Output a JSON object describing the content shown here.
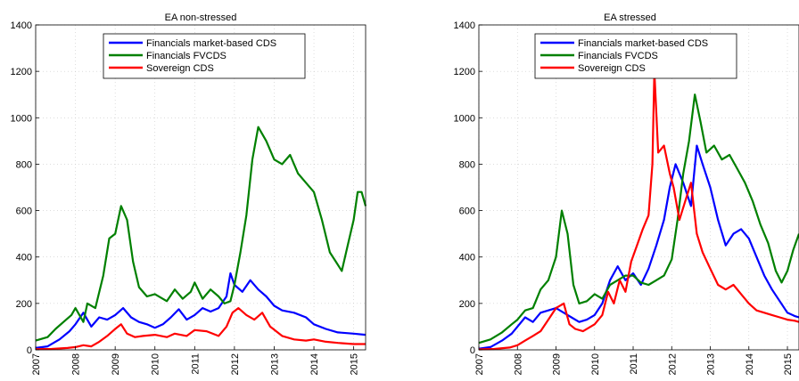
{
  "chart_data": [
    {
      "type": "line",
      "title": "EA non-stressed",
      "xlabel": "",
      "ylabel": "",
      "xlim": [
        2007,
        2015.3
      ],
      "ylim": [
        0,
        1400
      ],
      "x_ticks": [
        "2007",
        "2008",
        "2009",
        "2010",
        "2011",
        "2012",
        "2013",
        "2014",
        "2015"
      ],
      "y_ticks": [
        "0",
        "200",
        "400",
        "600",
        "800",
        "1000",
        "1200",
        "1400"
      ],
      "grid": true,
      "legend_position": "top-center",
      "series": [
        {
          "name": "Financials market-based CDS",
          "color": "#0000ff",
          "x": [
            2007.0,
            2007.3,
            2007.6,
            2007.85,
            2008.0,
            2008.2,
            2008.4,
            2008.6,
            2008.8,
            2009.0,
            2009.2,
            2009.4,
            2009.6,
            2009.8,
            2010.0,
            2010.2,
            2010.4,
            2010.6,
            2010.8,
            2011.0,
            2011.2,
            2011.4,
            2011.6,
            2011.8,
            2011.9,
            2012.0,
            2012.2,
            2012.4,
            2012.6,
            2012.8,
            2013.0,
            2013.2,
            2013.5,
            2013.8,
            2014.0,
            2014.3,
            2014.6,
            2015.0,
            2015.3
          ],
          "y": [
            8,
            15,
            45,
            80,
            110,
            160,
            100,
            140,
            130,
            150,
            180,
            140,
            120,
            110,
            95,
            110,
            140,
            175,
            130,
            150,
            180,
            165,
            180,
            230,
            330,
            280,
            250,
            300,
            260,
            230,
            190,
            170,
            160,
            140,
            110,
            90,
            75,
            70,
            65
          ]
        },
        {
          "name": "Financials FVCDS",
          "color": "#008000",
          "x": [
            2007.0,
            2007.3,
            2007.5,
            2007.7,
            2007.9,
            2008.0,
            2008.2,
            2008.3,
            2008.5,
            2008.7,
            2008.85,
            2009.0,
            2009.15,
            2009.3,
            2009.45,
            2009.6,
            2009.8,
            2010.0,
            2010.3,
            2010.5,
            2010.7,
            2010.9,
            2011.0,
            2011.2,
            2011.4,
            2011.6,
            2011.75,
            2011.9,
            2012.0,
            2012.15,
            2012.3,
            2012.45,
            2012.6,
            2012.8,
            2013.0,
            2013.2,
            2013.4,
            2013.6,
            2013.8,
            2014.0,
            2014.2,
            2014.4,
            2014.55,
            2014.7,
            2014.85,
            2015.0,
            2015.1,
            2015.2,
            2015.3
          ],
          "y": [
            40,
            55,
            90,
            120,
            150,
            180,
            120,
            200,
            180,
            320,
            480,
            500,
            620,
            560,
            380,
            270,
            230,
            240,
            210,
            260,
            220,
            250,
            290,
            220,
            260,
            230,
            200,
            210,
            280,
            420,
            580,
            820,
            960,
            900,
            820,
            800,
            840,
            760,
            720,
            680,
            560,
            420,
            380,
            340,
            450,
            560,
            680,
            680,
            620
          ]
        },
        {
          "name": "Sovereign CDS",
          "color": "#ff0000",
          "x": [
            2007.0,
            2007.4,
            2007.8,
            2008.0,
            2008.2,
            2008.4,
            2008.6,
            2008.8,
            2009.0,
            2009.15,
            2009.3,
            2009.5,
            2009.7,
            2010.0,
            2010.3,
            2010.5,
            2010.8,
            2011.0,
            2011.3,
            2011.6,
            2011.8,
            2011.95,
            2012.1,
            2012.3,
            2012.5,
            2012.7,
            2012.9,
            2013.2,
            2013.5,
            2013.8,
            2014.0,
            2014.3,
            2014.6,
            2015.0,
            2015.3
          ],
          "y": [
            3,
            4,
            8,
            12,
            20,
            15,
            35,
            60,
            90,
            110,
            70,
            55,
            60,
            65,
            55,
            70,
            60,
            85,
            80,
            60,
            100,
            160,
            180,
            150,
            130,
            160,
            100,
            60,
            45,
            40,
            45,
            35,
            30,
            25,
            25
          ]
        }
      ]
    },
    {
      "type": "line",
      "title": "EA stressed",
      "xlabel": "",
      "ylabel": "",
      "xlim": [
        2007,
        2015.3
      ],
      "ylim": [
        0,
        1400
      ],
      "x_ticks": [
        "2007",
        "2008",
        "2009",
        "2010",
        "2011",
        "2012",
        "2013",
        "2014",
        "2015"
      ],
      "y_ticks": [
        "0",
        "200",
        "400",
        "600",
        "800",
        "1000",
        "1200",
        "1400"
      ],
      "grid": true,
      "legend_position": "top-center",
      "series": [
        {
          "name": "Financials market-based CDS",
          "color": "#0000ff",
          "x": [
            2007.0,
            2007.3,
            2007.6,
            2007.85,
            2008.0,
            2008.2,
            2008.4,
            2008.6,
            2008.8,
            2009.0,
            2009.2,
            2009.4,
            2009.6,
            2009.8,
            2010.0,
            2010.2,
            2010.4,
            2010.6,
            2010.8,
            2011.0,
            2011.2,
            2011.4,
            2011.6,
            2011.8,
            2011.95,
            2012.1,
            2012.3,
            2012.5,
            2012.65,
            2012.8,
            2013.0,
            2013.2,
            2013.4,
            2013.6,
            2013.8,
            2014.0,
            2014.2,
            2014.4,
            2014.6,
            2014.8,
            2015.0,
            2015.2,
            2015.3
          ],
          "y": [
            5,
            12,
            40,
            70,
            100,
            140,
            120,
            160,
            170,
            180,
            160,
            140,
            120,
            130,
            150,
            200,
            300,
            360,
            300,
            330,
            280,
            350,
            450,
            560,
            700,
            800,
            720,
            620,
            880,
            800,
            700,
            560,
            450,
            500,
            520,
            480,
            400,
            320,
            260,
            210,
            160,
            145,
            140
          ]
        },
        {
          "name": "Financials FVCDS",
          "color": "#008000",
          "x": [
            2007.0,
            2007.3,
            2007.6,
            2007.85,
            2008.0,
            2008.2,
            2008.4,
            2008.6,
            2008.8,
            2009.0,
            2009.15,
            2009.3,
            2009.45,
            2009.6,
            2009.8,
            2010.0,
            2010.2,
            2010.4,
            2010.6,
            2010.8,
            2011.0,
            2011.2,
            2011.4,
            2011.6,
            2011.8,
            2012.0,
            2012.15,
            2012.3,
            2012.45,
            2012.6,
            2012.75,
            2012.9,
            2013.1,
            2013.3,
            2013.5,
            2013.7,
            2013.9,
            2014.1,
            2014.3,
            2014.5,
            2014.7,
            2014.85,
            2015.0,
            2015.15,
            2015.3
          ],
          "y": [
            30,
            45,
            75,
            110,
            130,
            170,
            180,
            260,
            300,
            400,
            600,
            500,
            280,
            200,
            210,
            240,
            220,
            280,
            300,
            320,
            320,
            290,
            280,
            300,
            320,
            390,
            560,
            760,
            900,
            1100,
            980,
            850,
            880,
            820,
            840,
            780,
            720,
            640,
            540,
            460,
            340,
            290,
            340,
            430,
            500
          ]
        },
        {
          "name": "Sovereign CDS",
          "color": "#ff0000",
          "x": [
            2007.0,
            2007.4,
            2007.8,
            2008.0,
            2008.2,
            2008.4,
            2008.6,
            2008.8,
            2009.0,
            2009.2,
            2009.35,
            2009.5,
            2009.7,
            2010.0,
            2010.2,
            2010.35,
            2010.5,
            2010.65,
            2010.8,
            2010.95,
            2011.1,
            2011.25,
            2011.4,
            2011.5,
            2011.55,
            2011.65,
            2011.8,
            2011.95,
            2012.05,
            2012.2,
            2012.35,
            2012.5,
            2012.65,
            2012.8,
            2013.0,
            2013.2,
            2013.4,
            2013.6,
            2013.8,
            2014.0,
            2014.2,
            2014.4,
            2014.6,
            2014.8,
            2015.0,
            2015.2,
            2015.3
          ],
          "y": [
            2,
            4,
            10,
            20,
            40,
            60,
            80,
            130,
            180,
            200,
            110,
            90,
            80,
            110,
            150,
            250,
            200,
            300,
            250,
            380,
            450,
            520,
            580,
            800,
            1200,
            850,
            880,
            760,
            700,
            560,
            640,
            720,
            500,
            420,
            350,
            280,
            260,
            280,
            240,
            200,
            170,
            160,
            150,
            140,
            130,
            125,
            120
          ]
        }
      ]
    }
  ]
}
